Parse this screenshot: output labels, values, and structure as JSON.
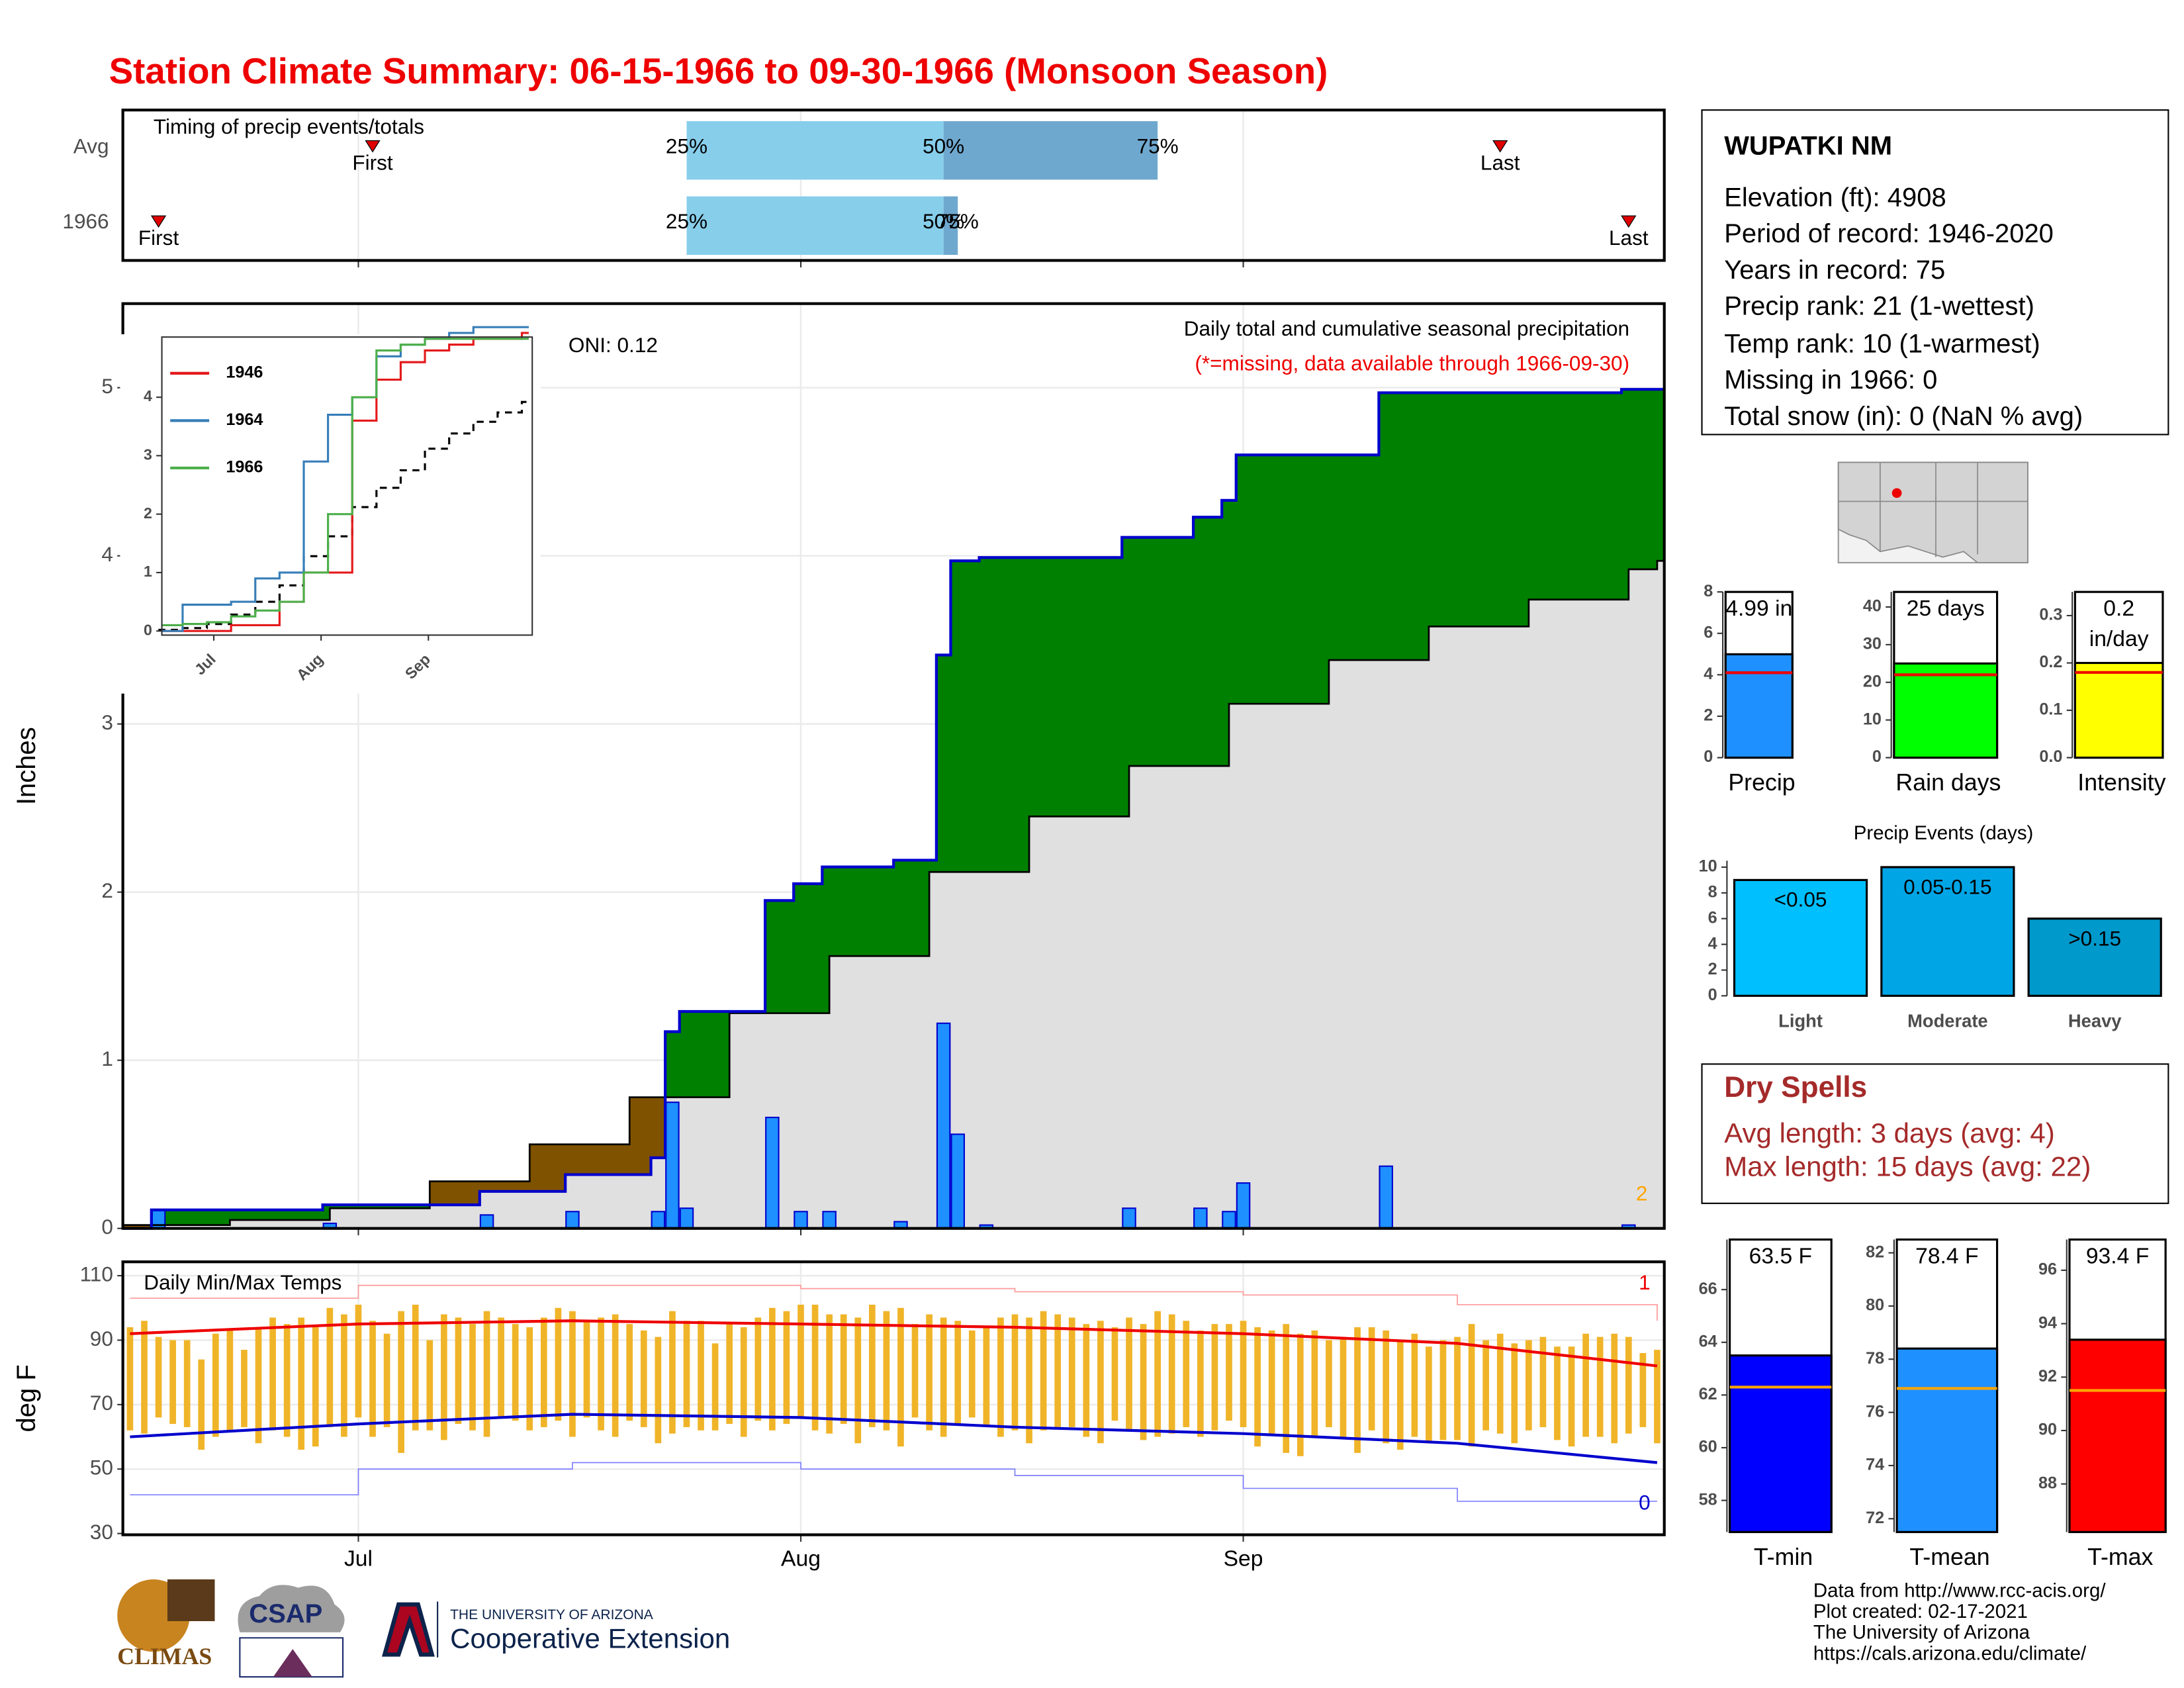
{
  "title": "Station Climate Summary: 06-15-1966 to 09-30-1966 (Monsoon Season)",
  "station": {
    "name": "WUPATKI NM",
    "lines": [
      "Elevation (ft): 4908",
      "Period of record: 1946-2020",
      "Years in record: 75",
      "Precip rank: 21 (1-wettest)",
      "Temp rank: 10 (1-warmest)",
      "Missing in 1966: 0",
      "Total snow (in): 0 (NaN % avg)"
    ]
  },
  "dry_spells": {
    "title": "Dry Spells",
    "lines": [
      "Avg length: 3 days (avg: 4)",
      "Max length: 15 days (avg: 22)"
    ],
    "color": "#a52a2a"
  },
  "footer": {
    "logos": [
      "CLIMAS",
      "CSAP",
      "THE UNIVERSITY OF ARIZONA",
      "Cooperative Extension"
    ],
    "credits": [
      "Data from http://www.rcc-acis.org/",
      "Plot created: 02-17-2021",
      "The University of Arizona",
      "https://cals.arizona.edu/climate/"
    ]
  },
  "chart_data": [
    {
      "type": "timing",
      "title": "Timing of precip events/totals",
      "xlim": [
        -0.5,
        107.5
      ],
      "xticks": [
        16,
        47,
        78
      ],
      "grid": true,
      "labels": {
        "first": "First",
        "q25": "25%",
        "q50": "50%",
        "q75": "75%",
        "last": "Last"
      },
      "rows": [
        {
          "name": "Avg",
          "first": 17,
          "q25": 39,
          "q50": 57,
          "q75": 72,
          "last": 96
        },
        {
          "name": "1966",
          "first": 2,
          "q25": 39,
          "q50": 57,
          "q75": 58,
          "last": 105
        }
      ],
      "colors": {
        "lower": "#87ceeb",
        "upper": "#6fa8cf",
        "marker": "#e00000"
      }
    },
    {
      "type": "precip",
      "title": "Daily total and cumulative seasonal precipitation",
      "subtitle": "(*=missing, data available through 1966-09-30)",
      "annotation": "ONI: 0.12",
      "note": 2,
      "y_label": "Inches",
      "xlim": [
        -0.5,
        107.5
      ],
      "xticks": [
        16,
        47,
        78
      ],
      "ylim": [
        0,
        5.5
      ],
      "yticks": [
        0,
        1,
        2,
        3,
        4,
        5
      ],
      "grid": true,
      "daily": {
        "x": [
          2,
          14,
          25,
          31,
          37,
          38,
          39,
          45,
          47,
          49,
          54,
          57,
          58,
          60,
          70,
          75,
          77,
          78,
          88,
          105
        ],
        "values": [
          0.11,
          0.03,
          0.08,
          0.1,
          0.1,
          0.75,
          0.12,
          0.66,
          0.1,
          0.1,
          0.04,
          1.22,
          0.56,
          0.02,
          0.12,
          0.12,
          0.1,
          0.27,
          0.37,
          0.02
        ],
        "color": "#1e90ff"
      },
      "average": {
        "x": [
          0,
          7,
          14,
          21,
          28,
          35,
          42,
          49,
          56,
          63,
          70,
          77,
          84,
          91,
          98,
          105,
          107
        ],
        "values": [
          0.02,
          0.05,
          0.12,
          0.28,
          0.5,
          0.78,
          1.28,
          1.62,
          2.12,
          2.45,
          2.75,
          3.12,
          3.38,
          3.58,
          3.74,
          3.92,
          3.97
        ]
      },
      "line_color": "#0000cd",
      "avg_color": "#000000",
      "note_color": "#ffa500",
      "colors": {
        "above": "#008000",
        "below": "#7f5200",
        "base": "#e0e0e0"
      }
    },
    {
      "type": "line",
      "legend": "top-left",
      "xlim": [
        1,
        108
      ],
      "xticks": [
        {
          "value": 16,
          "label": "Jul"
        },
        {
          "value": 47,
          "label": "Aug"
        },
        {
          "value": 78,
          "label": "Sep"
        }
      ],
      "ylim": [
        -0.07,
        5.03
      ],
      "yticks": [
        0,
        1,
        2,
        3,
        4
      ],
      "x": [
        1,
        7,
        14,
        21,
        28,
        35,
        42,
        49,
        56,
        63,
        70,
        77,
        84,
        91,
        98,
        105,
        107
      ],
      "series": [
        {
          "name": "1946",
          "color": "#e41a1c",
          "values": [
            0,
            0,
            0,
            0.1,
            0.1,
            0.5,
            1.0,
            1.0,
            3.6,
            4.3,
            4.6,
            4.8,
            4.9,
            5.0,
            5.0,
            5.1,
            5.1
          ]
        },
        {
          "name": "1964",
          "color": "#377eb8",
          "values": [
            0,
            0.45,
            0.45,
            0.5,
            0.9,
            1.0,
            2.9,
            3.7,
            4.0,
            4.7,
            4.9,
            5.0,
            5.1,
            5.2,
            5.2,
            5.2,
            5.2
          ]
        },
        {
          "name": "1966",
          "color": "#4daf4a",
          "values": [
            0.1,
            0.12,
            0.15,
            0.25,
            0.35,
            0.5,
            1.0,
            2.0,
            4.0,
            4.8,
            4.9,
            5.0,
            5.0,
            5.0,
            5.0,
            5.0,
            5.0
          ]
        }
      ]
    },
    {
      "type": "temps",
      "title": "Daily Min/Max Temps",
      "y_label": "deg F",
      "xlim": [
        -0.5,
        107.5
      ],
      "xticks": [
        {
          "value": 16,
          "label": "Jul"
        },
        {
          "value": 47,
          "label": "Aug"
        },
        {
          "value": 78,
          "label": "Sep"
        }
      ],
      "ylim": [
        29.6,
        114.3
      ],
      "yticks": [
        30,
        50,
        70,
        90,
        110
      ],
      "grid": true,
      "bar_color": "#f0b429",
      "tmax": [
        94,
        96,
        91,
        90,
        90,
        84,
        92,
        93,
        87,
        94,
        97,
        95,
        97,
        94,
        100,
        98,
        101,
        96,
        92,
        99,
        101,
        90,
        98,
        97,
        95,
        99,
        97,
        95,
        94,
        97,
        100,
        99,
        96,
        97,
        98,
        95,
        93,
        91,
        99,
        96,
        96,
        89,
        95,
        94,
        97,
        100,
        99,
        101,
        101,
        98,
        98,
        97,
        101,
        99,
        100,
        95,
        98,
        97,
        96,
        93,
        94,
        97,
        98,
        97,
        99,
        98,
        97,
        95,
        96,
        94,
        97,
        95,
        99,
        98,
        96,
        93,
        95,
        95,
        96,
        94,
        93,
        95,
        92,
        93,
        90,
        91,
        94,
        94,
        93,
        90,
        92,
        88,
        90,
        91,
        95,
        90,
        92,
        89,
        90,
        91,
        88,
        88,
        92,
        91,
        92,
        91,
        86,
        87
      ],
      "tmin": [
        62,
        61,
        66,
        64,
        63,
        56,
        60,
        62,
        63,
        58,
        62,
        60,
        56,
        57,
        63,
        60,
        66,
        60,
        63,
        55,
        62,
        62,
        59,
        64,
        62,
        60,
        66,
        65,
        62,
        63,
        65,
        60,
        66,
        62,
        60,
        65,
        63,
        58,
        61,
        63,
        62,
        62,
        64,
        60,
        65,
        62,
        64,
        66,
        62,
        61,
        64,
        58,
        63,
        62,
        57,
        66,
        62,
        60,
        64,
        66,
        63,
        60,
        62,
        58,
        62,
        63,
        63,
        60,
        58,
        65,
        62,
        59,
        60,
        61,
        63,
        60,
        62,
        65,
        63,
        57,
        61,
        55,
        54,
        60,
        63,
        60,
        55,
        62,
        58,
        56,
        60,
        58,
        59,
        59,
        57,
        62,
        61,
        58,
        62,
        63,
        59,
        57,
        60,
        60,
        58,
        61,
        63,
        58
      ],
      "avg_max": {
        "x": [
          0,
          16,
          31,
          47,
          62,
          78,
          93,
          107
        ],
        "values": [
          92,
          95,
          96,
          95,
          94,
          92,
          89,
          82
        ],
        "color": "#ee0000"
      },
      "avg_min": {
        "x": [
          0,
          16,
          31,
          47,
          62,
          78,
          93,
          107
        ],
        "values": [
          60,
          64,
          67,
          66,
          63,
          61,
          58,
          52
        ],
        "color": "#0000cd"
      },
      "record_high": {
        "x": [
          0,
          16,
          31,
          47,
          62,
          78,
          93,
          107
        ],
        "values": [
          103,
          107,
          107,
          106,
          105,
          104,
          101,
          96
        ],
        "color": "#ff9999"
      },
      "record_low": {
        "x": [
          0,
          16,
          31,
          47,
          62,
          78,
          93,
          107
        ],
        "values": [
          42,
          50,
          52,
          50,
          48,
          44,
          40,
          40
        ],
        "color": "#8080ff"
      },
      "record_high_count": 1,
      "record_low_count": 0
    },
    {
      "type": "summary_bar",
      "category": "Precip",
      "value": 4.99,
      "value_label": "4.99 in",
      "average": 4.1,
      "color": "#1e90ff",
      "avg_color": "#ee0000",
      "ylim": [
        0,
        8
      ],
      "yticks": [
        0,
        2,
        4,
        6,
        8
      ]
    },
    {
      "type": "summary_bar",
      "category": "Rain days",
      "value": 25,
      "value_label": "25 days",
      "average": 22,
      "color": "#00ff00",
      "avg_color": "#ee0000",
      "ylim": [
        0,
        44
      ],
      "yticks": [
        0,
        10,
        20,
        30,
        40
      ]
    },
    {
      "type": "summary_bar",
      "category": "Intensity",
      "value": 0.2,
      "value_label": "0.2 in/day",
      "average": 0.18,
      "color": "#ffff00",
      "avg_color": "#ee0000",
      "ylim": [
        0,
        0.35
      ],
      "yticks": [
        {
          "value": 0,
          "label": "0.0"
        },
        0.1,
        0.2,
        0.3
      ]
    },
    {
      "type": "events_bar",
      "title": "Precip Events (days)",
      "categories": [
        "Light",
        "Moderate",
        "Heavy"
      ],
      "values": [
        9,
        10,
        6
      ],
      "value_labels": [
        "<0.05",
        "0.05-0.15",
        ">0.15"
      ],
      "colors": [
        "#00bfff",
        "#00a5e6",
        "#0099cc"
      ],
      "ylim": [
        0,
        10.5
      ],
      "yticks": [
        0,
        2,
        4,
        6,
        8,
        10
      ]
    },
    {
      "type": "summary_bar",
      "category": "T-min",
      "value": 63.5,
      "value_label": "63.5 F",
      "average": 62.3,
      "color": "#0000ff",
      "avg_color": "#ffa500",
      "ylim": [
        56.8,
        67.9
      ],
      "yticks": [
        58,
        60,
        62,
        64,
        66
      ]
    },
    {
      "type": "summary_bar",
      "category": "T-mean",
      "value": 78.4,
      "value_label": "78.4 F",
      "average": 76.9,
      "color": "#1e90ff",
      "avg_color": "#ffa500",
      "ylim": [
        71.5,
        82.5
      ],
      "yticks": [
        72,
        74,
        76,
        78,
        80,
        82
      ]
    },
    {
      "type": "summary_bar",
      "category": "T-max",
      "value": 93.4,
      "value_label": "93.4 F",
      "average": 91.5,
      "color": "#ff0000",
      "avg_color": "#ffa500",
      "ylim": [
        86.2,
        97.15
      ],
      "yticks": [
        88,
        90,
        92,
        94,
        96
      ]
    }
  ]
}
